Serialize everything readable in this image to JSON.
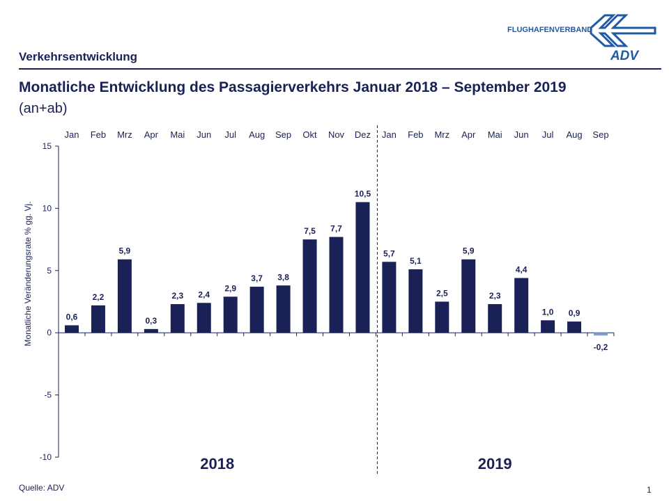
{
  "header": {
    "section": "Verkehrsentwicklung",
    "title": "Monatliche Entwicklung des Passagierverkehrs  Januar 2018 – September 2019",
    "subtitle": "(an+ab)",
    "logo_text": "FLUGHAFENVERBAND",
    "logo_mark": "ADV"
  },
  "footer": {
    "source": "Quelle: ADV",
    "page": "1"
  },
  "colors": {
    "bar": "#1a2157",
    "negative_bar": "#7f9fcf",
    "text": "#1a2157"
  },
  "chart_data": {
    "type": "bar",
    "categories": [
      "Jan",
      "Feb",
      "Mrz",
      "Apr",
      "Mai",
      "Jun",
      "Jul",
      "Aug",
      "Sep",
      "Okt",
      "Nov",
      "Dez",
      "Jan",
      "Feb",
      "Mrz",
      "Apr",
      "Mai",
      "Jun",
      "Jul",
      "Aug",
      "Sep"
    ],
    "values": [
      0.6,
      2.2,
      5.9,
      0.3,
      2.3,
      2.4,
      2.9,
      3.7,
      3.8,
      7.5,
      7.7,
      10.5,
      5.7,
      5.1,
      2.5,
      5.9,
      2.3,
      4.4,
      1.0,
      0.9,
      -0.2
    ],
    "labels": [
      "0,6",
      "2,2",
      "5,9",
      "0,3",
      "2,3",
      "2,4",
      "2,9",
      "3,7",
      "3,8",
      "7,5",
      "7,7",
      "10,5",
      "5,7",
      "5,1",
      "2,5",
      "5,9",
      "2,3",
      "4,4",
      "1,0",
      "0,9",
      "-0,2"
    ],
    "groups": [
      {
        "label": "2018",
        "count": 12
      },
      {
        "label": "2019",
        "count": 9
      }
    ],
    "ylabel": "Monatliche Veränderungsrate % gg. Vj.",
    "ylim": [
      -10,
      15
    ],
    "yticks": [
      {
        "v": 15,
        "label": "15"
      },
      {
        "v": 10,
        "label": "10"
      },
      {
        "v": 5,
        "label": "5"
      },
      {
        "v": 0,
        "label": "0"
      },
      {
        "v": -5,
        "label": "-5"
      },
      {
        "v": -10,
        "label": "-10"
      }
    ],
    "grid": false,
    "legend": "none"
  }
}
